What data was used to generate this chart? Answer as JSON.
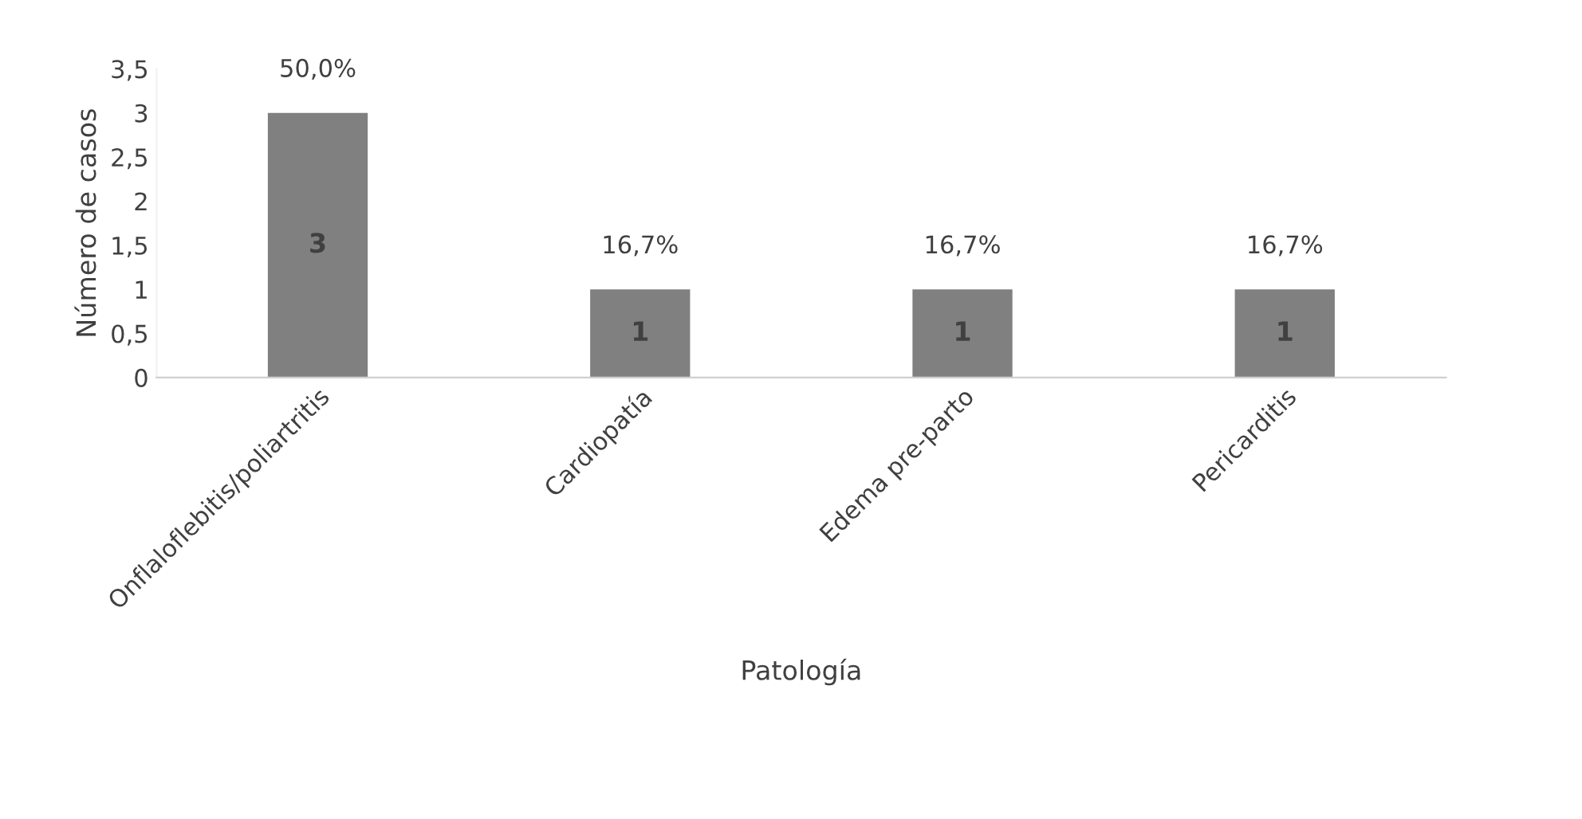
{
  "chart_data": {
    "type": "bar",
    "xlabel": "Patología",
    "ylabel": "Número de casos",
    "categories": [
      "Onflaloflebitis/poliartritis",
      "Cardiopatía",
      "Edema pre-parto",
      "Pericarditis"
    ],
    "values": [
      3,
      1,
      1,
      1
    ],
    "color": "#808080",
    "ylim": [
      0,
      3.5
    ],
    "yticks": [
      0,
      {
        "value": 0.5,
        "label": "0,5"
      },
      1,
      {
        "value": 1.5,
        "label": "1,5"
      },
      2,
      {
        "value": 2.5,
        "label": "2,5"
      },
      3,
      {
        "value": 3.5,
        "label": "3,5"
      }
    ],
    "grid": false,
    "legend": false,
    "data_labels": true,
    "annotations": [
      {
        "text": "50,0%",
        "x": "Onflaloflebitis/poliartritis",
        "y": 3
      },
      {
        "text": "16,7%",
        "x": "Cardiopatía",
        "y": 1
      },
      {
        "text": "16,7%",
        "x": "Edema pre-parto",
        "y": 1
      },
      {
        "text": "16,7%",
        "x": "Pericarditis",
        "y": 1
      }
    ]
  }
}
